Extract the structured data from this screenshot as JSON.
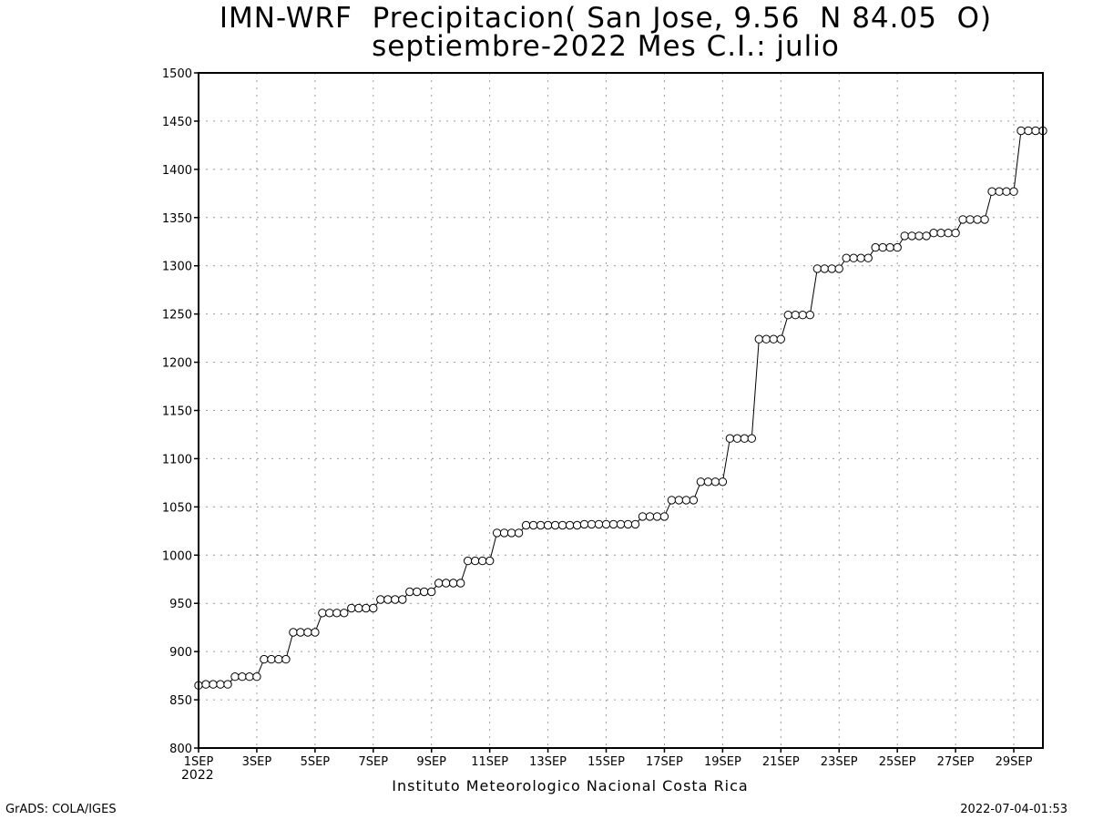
{
  "title": {
    "line1": "IMN-WRF  Precipitacion( San Jose, 9.56  N 84.05  O)",
    "line2": "septiembre-2022 Mes C.I.: julio"
  },
  "chart_data": {
    "type": "line",
    "title": "IMN-WRF  Precipitacion( San Jose, 9.56  N 84.05  O) septiembre-2022 Mes C.I.: julio",
    "xlabel": "",
    "ylabel": "",
    "ylim": [
      800,
      1500
    ],
    "yticks": [
      800,
      850,
      900,
      950,
      1000,
      1050,
      1100,
      1150,
      1200,
      1250,
      1300,
      1350,
      1400,
      1450,
      1500
    ],
    "xlim_day": [
      1,
      30
    ],
    "xticks": [
      {
        "day": 1,
        "label": "1SEP"
      },
      {
        "day": 3,
        "label": "3SEP"
      },
      {
        "day": 5,
        "label": "5SEP"
      },
      {
        "day": 7,
        "label": "7SEP"
      },
      {
        "day": 9,
        "label": "9SEP"
      },
      {
        "day": 11,
        "label": "11SEP"
      },
      {
        "day": 13,
        "label": "13SEP"
      },
      {
        "day": 15,
        "label": "15SEP"
      },
      {
        "day": 17,
        "label": "17SEP"
      },
      {
        "day": 19,
        "label": "19SEP"
      },
      {
        "day": 21,
        "label": "21SEP"
      },
      {
        "day": 23,
        "label": "23SEP"
      },
      {
        "day": 25,
        "label": "25SEP"
      },
      {
        "day": 27,
        "label": "27SEP"
      },
      {
        "day": 29,
        "label": "29SEP"
      }
    ],
    "xsublabel": "2022",
    "grid": true,
    "marker": "open-circle",
    "series": [
      {
        "values": [
          865,
          866,
          866,
          866,
          866,
          874,
          874,
          874,
          874,
          892,
          892,
          892,
          892,
          920,
          920,
          920,
          920,
          940,
          940,
          940,
          940,
          945,
          945,
          945,
          945,
          954,
          954,
          954,
          954,
          962,
          962,
          962,
          962,
          971,
          971,
          971,
          971,
          994,
          994,
          994,
          994,
          1023,
          1023,
          1023,
          1023,
          1031,
          1031,
          1031,
          1031,
          1031,
          1031,
          1031,
          1031,
          1032,
          1032,
          1032,
          1032,
          1032,
          1032,
          1032,
          1032,
          1040,
          1040,
          1040,
          1040,
          1057,
          1057,
          1057,
          1057,
          1076,
          1076,
          1076,
          1076,
          1121,
          1121,
          1121,
          1121,
          1224,
          1224,
          1224,
          1224,
          1249,
          1249,
          1249,
          1249,
          1297,
          1297,
          1297,
          1297,
          1308,
          1308,
          1308,
          1308,
          1319,
          1319,
          1319,
          1319,
          1331,
          1331,
          1331,
          1331,
          1334,
          1334,
          1334,
          1334,
          1348,
          1348,
          1348,
          1348,
          1377,
          1377,
          1377,
          1377,
          1440,
          1440,
          1440,
          1440
        ],
        "points_per_day": 4
      }
    ]
  },
  "credit": "Instituto Meteorologico Nacional Costa Rica",
  "footer": {
    "left": "GrADS: COLA/IGES",
    "right": "2022-07-04-01:53"
  }
}
